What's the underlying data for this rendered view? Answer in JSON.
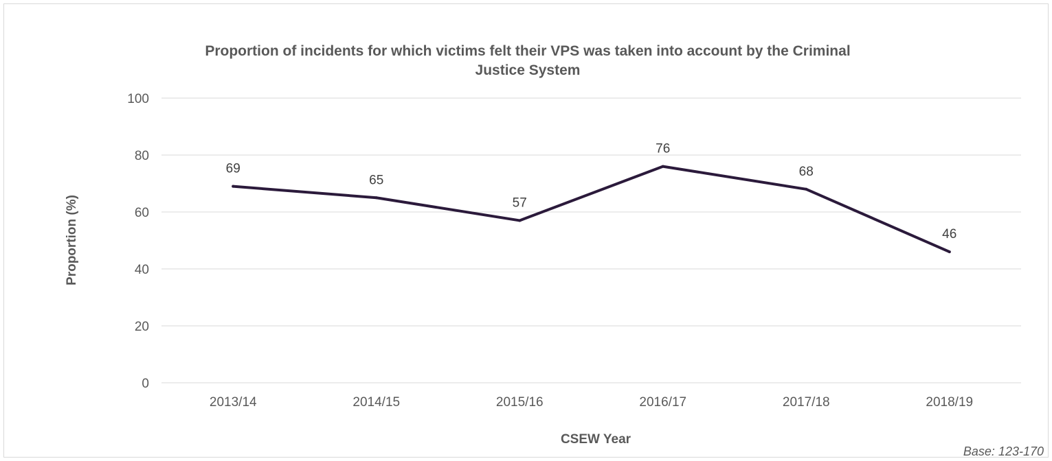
{
  "chart_data": {
    "type": "line",
    "title": "Proportion of incidents for which victims felt their VPS was taken into account by the Criminal Justice System",
    "title_lines": [
      "Proportion of incidents for which victims felt their VPS was taken into account by the Criminal",
      "Justice System"
    ],
    "xlabel": "CSEW Year",
    "ylabel": "Proportion (%)",
    "categories": [
      "2013/14",
      "2014/15",
      "2015/16",
      "2016/17",
      "2017/18",
      "2018/19"
    ],
    "series": [
      {
        "values": [
          69,
          65,
          57,
          76,
          68,
          46
        ],
        "color": "#2b1a3b"
      }
    ],
    "ylim": [
      0,
      100
    ],
    "yticks": [
      0,
      20,
      40,
      60,
      80,
      100
    ],
    "grid": true,
    "legend": "none",
    "footnote": "Base: 123-170"
  }
}
